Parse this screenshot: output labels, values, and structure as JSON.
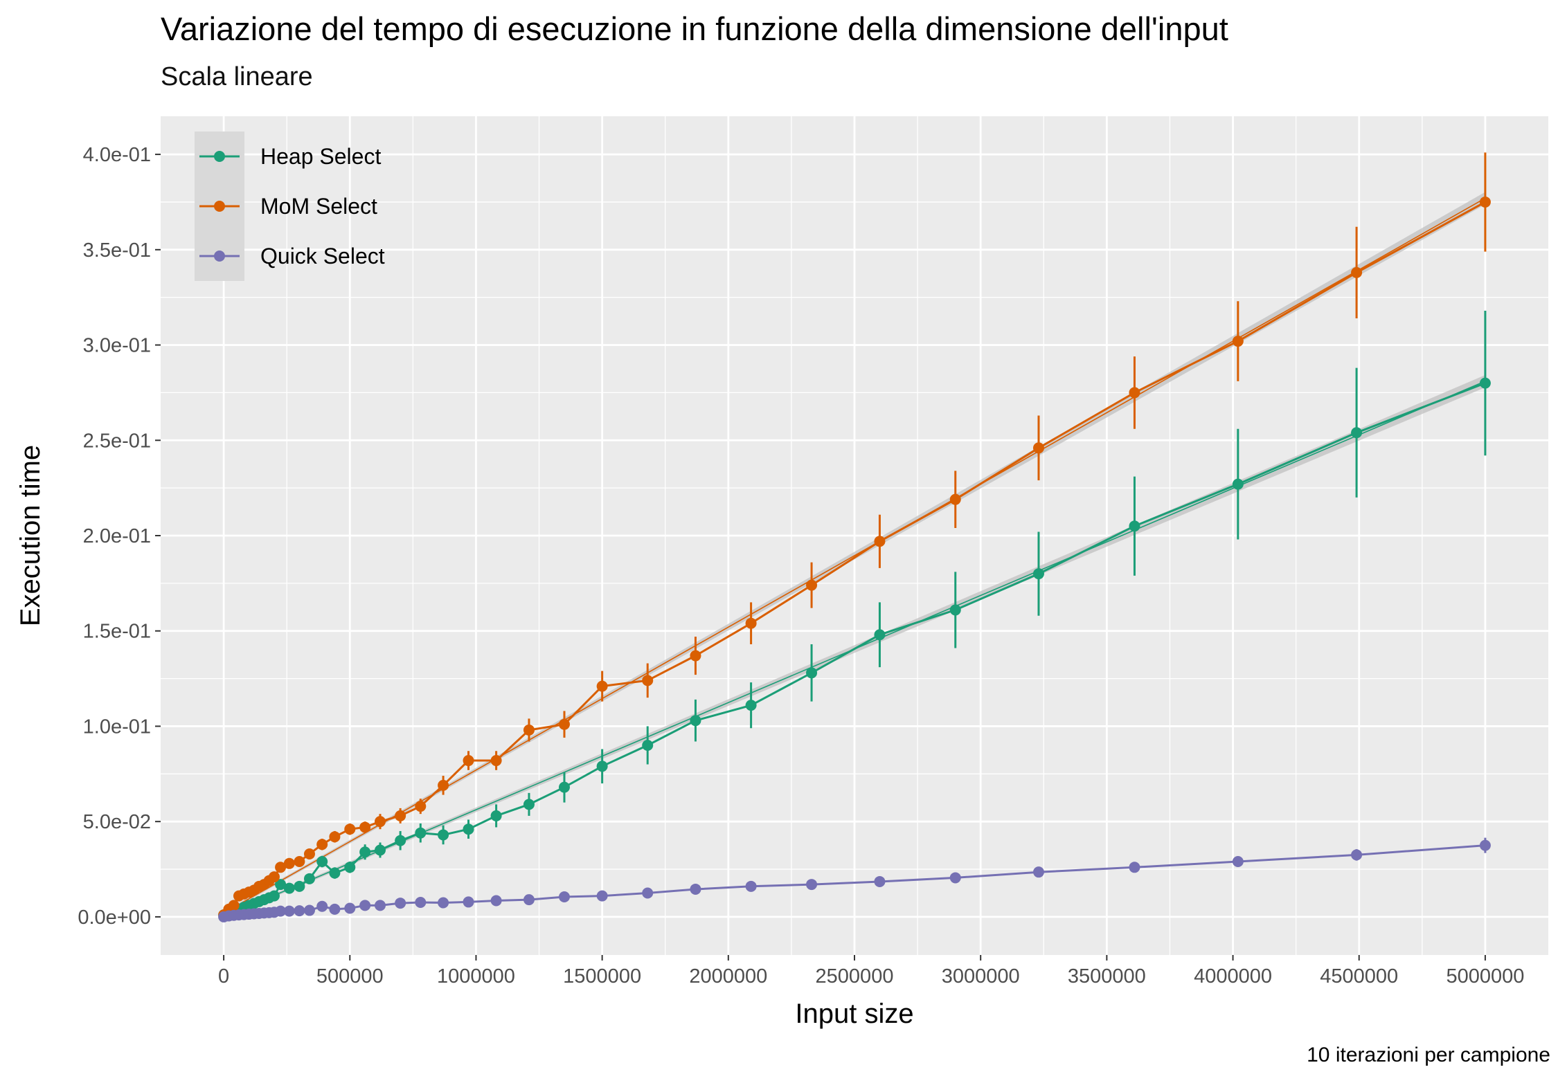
{
  "chart_data": {
    "type": "line",
    "title": "Variazione del tempo di esecuzione in funzione della dimensione dell'input",
    "subtitle": "Scala lineare",
    "caption": "10 iterazioni per campione",
    "xlabel": "Input size",
    "ylabel": "Execution time",
    "xlim": [
      -250000,
      5250000
    ],
    "ylim": [
      -0.02,
      0.42
    ],
    "x_ticks": [
      0,
      500000,
      1000000,
      1500000,
      2000000,
      2500000,
      3000000,
      3500000,
      4000000,
      4500000,
      5000000
    ],
    "x_tick_labels": [
      "0",
      "500000",
      "1000000",
      "1500000",
      "2000000",
      "2500000",
      "3000000",
      "3500000",
      "4000000",
      "4500000",
      "5000000"
    ],
    "y_ticks": [
      0,
      0.05,
      0.1,
      0.15,
      0.2,
      0.25,
      0.3,
      0.35,
      0.4
    ],
    "y_tick_labels": [
      "0.0e+00",
      "5.0e-02",
      "1.0e-01",
      "1.5e-01",
      "2.0e-01",
      "2.5e-01",
      "3.0e-01",
      "3.5e-01",
      "4.0e-01"
    ],
    "grid": true,
    "legend_position": "top-left",
    "series": [
      {
        "name": "Heap Select",
        "color": "#1b9e77",
        "x": [
          0,
          20000,
          40000,
          60000,
          80000,
          100000,
          120000,
          140000,
          160000,
          180000,
          200000,
          225000,
          260000,
          300000,
          340000,
          390000,
          440000,
          500000,
          560000,
          620000,
          700000,
          780000,
          870000,
          970000,
          1080000,
          1210000,
          1350000,
          1500000,
          1680000,
          1870000,
          2090000,
          2330000,
          2600000,
          2900000,
          3230000,
          3610000,
          4020000,
          4490000,
          5000000
        ],
        "y": [
          0.001,
          0.002,
          0.003,
          0.004,
          0.005,
          0.006,
          0.007,
          0.008,
          0.009,
          0.01,
          0.011,
          0.017,
          0.015,
          0.016,
          0.02,
          0.029,
          0.023,
          0.026,
          0.034,
          0.035,
          0.04,
          0.044,
          0.043,
          0.046,
          0.053,
          0.059,
          0.068,
          0.079,
          0.09,
          0.103,
          0.111,
          0.128,
          0.148,
          0.161,
          0.18,
          0.205,
          0.227,
          0.254,
          0.28
        ],
        "err": [
          0,
          0,
          0,
          0,
          0,
          0,
          0,
          0,
          0,
          0,
          0.001,
          0.002,
          0.002,
          0.002,
          0.002,
          0.003,
          0.003,
          0.003,
          0.004,
          0.004,
          0.005,
          0.005,
          0.005,
          0.005,
          0.006,
          0.006,
          0.008,
          0.009,
          0.01,
          0.011,
          0.012,
          0.015,
          0.017,
          0.02,
          0.022,
          0.026,
          0.029,
          0.034,
          0.038
        ],
        "fit": [
          [
            0,
            0
          ],
          [
            5000000,
            0.281
          ]
        ]
      },
      {
        "name": "MoM Select",
        "color": "#d95f02",
        "x": [
          0,
          20000,
          40000,
          60000,
          80000,
          100000,
          120000,
          140000,
          160000,
          180000,
          200000,
          225000,
          260000,
          300000,
          340000,
          390000,
          440000,
          500000,
          560000,
          620000,
          700000,
          780000,
          870000,
          970000,
          1080000,
          1210000,
          1350000,
          1500000,
          1680000,
          1870000,
          2090000,
          2330000,
          2600000,
          2900000,
          3230000,
          3610000,
          4020000,
          4490000,
          5000000
        ],
        "y": [
          0.001,
          0.004,
          0.006,
          0.011,
          0.012,
          0.013,
          0.014,
          0.016,
          0.017,
          0.019,
          0.021,
          0.026,
          0.028,
          0.029,
          0.033,
          0.038,
          0.042,
          0.046,
          0.047,
          0.05,
          0.053,
          0.058,
          0.069,
          0.082,
          0.082,
          0.098,
          0.101,
          0.121,
          0.124,
          0.137,
          0.154,
          0.174,
          0.197,
          0.219,
          0.246,
          0.275,
          0.302,
          0.338,
          0.375
        ],
        "err": [
          0,
          0,
          0,
          0,
          0,
          0,
          0,
          0.001,
          0.001,
          0.001,
          0.001,
          0.002,
          0.002,
          0.002,
          0.002,
          0.003,
          0.003,
          0.003,
          0.003,
          0.004,
          0.004,
          0.004,
          0.005,
          0.005,
          0.005,
          0.006,
          0.007,
          0.008,
          0.009,
          0.01,
          0.011,
          0.012,
          0.014,
          0.015,
          0.017,
          0.019,
          0.021,
          0.024,
          0.026
        ],
        "fit": [
          [
            0,
            0.002
          ],
          [
            5000000,
            0.377
          ]
        ]
      },
      {
        "name": "Quick Select",
        "color": "#7570b3",
        "x": [
          0,
          20000,
          40000,
          60000,
          80000,
          100000,
          120000,
          140000,
          160000,
          180000,
          200000,
          225000,
          260000,
          300000,
          340000,
          390000,
          440000,
          500000,
          560000,
          620000,
          700000,
          780000,
          870000,
          970000,
          1080000,
          1210000,
          1350000,
          1500000,
          1680000,
          1870000,
          2090000,
          2330000,
          2600000,
          2900000,
          3230000,
          3610000,
          4020000,
          4490000,
          5000000
        ],
        "y": [
          0.0,
          0.0005,
          0.0008,
          0.001,
          0.0012,
          0.0014,
          0.0016,
          0.0018,
          0.002,
          0.0022,
          0.0024,
          0.003,
          0.003,
          0.0032,
          0.0034,
          0.0055,
          0.004,
          0.0045,
          0.006,
          0.006,
          0.0072,
          0.0076,
          0.0074,
          0.0078,
          0.0085,
          0.009,
          0.0105,
          0.011,
          0.0125,
          0.0145,
          0.016,
          0.017,
          0.0185,
          0.0205,
          0.0235,
          0.026,
          0.029,
          0.0325,
          0.0375
        ],
        "err": [
          0,
          0,
          0,
          0,
          0,
          0,
          0,
          0,
          0,
          0,
          0,
          0,
          0,
          0,
          0,
          0,
          0,
          0,
          0,
          0,
          0,
          0,
          0,
          0,
          0,
          0,
          0,
          0,
          0,
          0,
          0,
          0,
          0,
          0,
          0,
          0,
          0.002,
          0.003,
          0.004
        ]
      }
    ]
  }
}
